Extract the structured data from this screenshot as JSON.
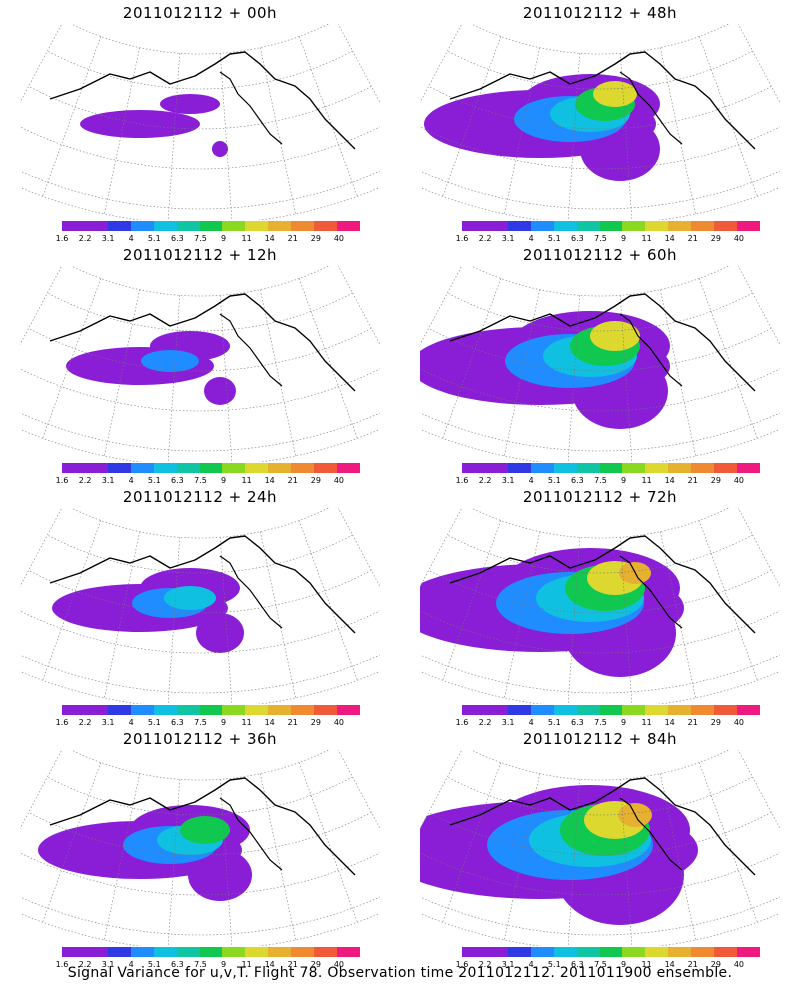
{
  "colorbar": {
    "colors": [
      "#8a1dd6",
      "#8a1dd6",
      "#2f3ae6",
      "#1f8cff",
      "#10c0e0",
      "#10c4a4",
      "#10c850",
      "#8ad820",
      "#dcd830",
      "#e6b030",
      "#ee8a30",
      "#f05a38",
      "#ee1a80"
    ],
    "labels": [
      "1.6",
      "2.2",
      "3.1",
      "4",
      "5.1",
      "6.3",
      "7.5",
      "9",
      "11",
      "14",
      "21",
      "29",
      "40"
    ]
  },
  "panels": [
    {
      "title": "2011012112 + 00h",
      "intensity": 0
    },
    {
      "title": "2011012112 + 48h",
      "intensity": 4
    },
    {
      "title": "2011012112 + 12h",
      "intensity": 1
    },
    {
      "title": "2011012112 + 60h",
      "intensity": 5
    },
    {
      "title": "2011012112 + 24h",
      "intensity": 2
    },
    {
      "title": "2011012112 + 72h",
      "intensity": 6
    },
    {
      "title": "2011012112 + 36h",
      "intensity": 3
    },
    {
      "title": "2011012112 + 84h",
      "intensity": 7
    }
  ],
  "footer": "Signal Variance for u,v,T. Flight 78. Observation time 2011012112. 2011011900 ensemble."
}
